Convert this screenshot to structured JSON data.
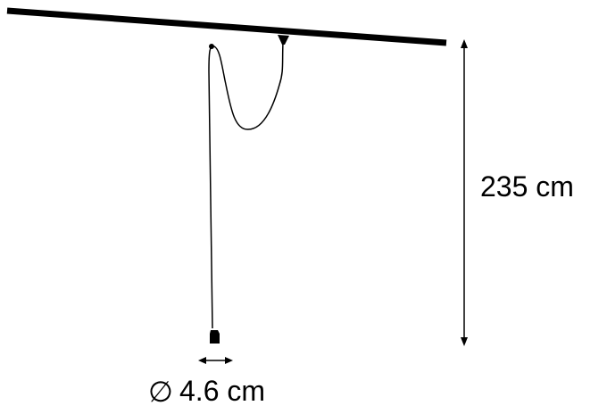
{
  "dimensions": {
    "height_label": "235 cm",
    "diameter_symbol": "∅",
    "diameter_label": "4.6 cm"
  },
  "colors": {
    "line": "#000000",
    "background": "#ffffff"
  }
}
